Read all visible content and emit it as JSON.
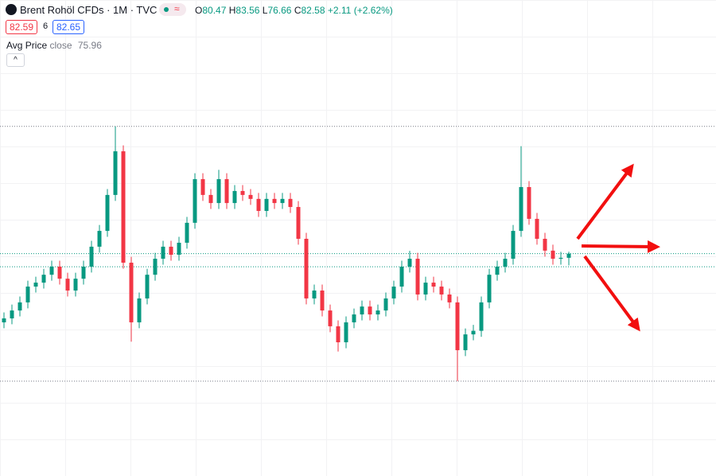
{
  "chart_data": {
    "type": "candlestick",
    "title": "Brent Rohöl CFDs · 1M · TVC",
    "ohlc_labels": [
      "O",
      "H",
      "L",
      "C"
    ],
    "change": "+2.11",
    "change_percent": "(+2.62%)",
    "bid": "82.59",
    "spread": "6",
    "ask": "82.65",
    "indicator": {
      "name": "Avg Price",
      "source": "close",
      "value": 75.96
    },
    "up_color": "#089981",
    "down_color": "#f23645",
    "ylim": [
      -30,
      211
    ],
    "open": [
      47.8,
      49.8,
      53.8,
      57.9,
      65.9,
      67.9,
      71.9,
      76.0,
      69.9,
      63.9,
      69.9,
      76.0,
      86.1,
      94.1,
      112.3,
      134.4,
      78.0,
      47.8,
      59.9,
      71.9,
      80.0,
      86.1,
      82.0,
      88.1,
      98.2,
      120.3,
      112.3,
      108.2,
      120.3,
      108.2,
      114.3,
      112.3,
      110.3,
      104.2,
      110.3,
      108.2,
      110.3,
      106.2,
      90.1,
      59.9,
      63.9,
      53.8,
      45.8,
      37.7,
      47.8,
      51.8,
      55.8,
      51.8,
      53.8,
      59.9,
      65.9,
      76.0,
      80.0,
      61.9,
      67.9,
      65.9,
      61.9,
      57.9,
      33.7,
      41.7,
      43.5,
      57.9,
      71.9,
      76.0,
      80.0,
      94.1,
      116.3,
      100.2,
      90.1,
      84.1,
      80.0,
      80.47
    ],
    "high": [
      52.8,
      56.8,
      60.9,
      68.9,
      70.9,
      74.9,
      79,
      79,
      72.9,
      72.9,
      79,
      89.1,
      97.1,
      115.3,
      147,
      137.4,
      81,
      62.9,
      74.9,
      83,
      89.1,
      89.1,
      91.1,
      101.2,
      123.3,
      123.3,
      115.3,
      125,
      123.3,
      117.3,
      117.3,
      115.3,
      113.3,
      113.3,
      113.3,
      113.3,
      113.3,
      109.2,
      93.1,
      66.9,
      66.9,
      56.8,
      48.8,
      50.8,
      54.8,
      58.8,
      58.8,
      56.8,
      62.9,
      68.9,
      79,
      84,
      83,
      70.9,
      70.9,
      68.9,
      64.9,
      60.9,
      44.7,
      46.5,
      60.9,
      74.9,
      79,
      83,
      97.1,
      137,
      119.3,
      103.2,
      93.1,
      87.1,
      83.5,
      83.56
    ],
    "low": [
      44.8,
      46.8,
      50.8,
      54.9,
      62.9,
      64.9,
      68.9,
      66.9,
      60.9,
      60.9,
      66.9,
      73,
      83.1,
      91.1,
      109.3,
      75,
      38,
      44.8,
      56.9,
      68.9,
      77,
      79,
      79,
      85.1,
      95.2,
      109.3,
      105.2,
      105.2,
      105.2,
      105.2,
      109.3,
      107.3,
      101.2,
      101.2,
      105.2,
      105.2,
      103.2,
      87.1,
      56.9,
      56.9,
      50.8,
      42.8,
      33,
      34.7,
      44.8,
      48.8,
      48.8,
      48.8,
      50.8,
      56.9,
      62.9,
      73,
      58.9,
      58.9,
      62.9,
      58.9,
      54.9,
      18,
      30.7,
      38.7,
      40.5,
      54.9,
      68.9,
      73,
      77,
      91.1,
      97.2,
      87.1,
      81.1,
      77,
      77,
      76.66
    ],
    "close": [
      49.8,
      53.8,
      57.9,
      65.9,
      67.9,
      71.9,
      76.0,
      69.9,
      63.9,
      69.9,
      76.0,
      86.1,
      94.1,
      112.3,
      134.4,
      78.0,
      47.8,
      59.9,
      71.9,
      80.0,
      86.1,
      82.0,
      88.1,
      98.2,
      120.3,
      112.3,
      108.2,
      120.3,
      108.2,
      114.3,
      112.3,
      110.3,
      104.2,
      110.3,
      108.2,
      110.3,
      106.2,
      90.1,
      59.9,
      63.9,
      53.8,
      45.8,
      37.7,
      47.8,
      51.8,
      55.8,
      51.8,
      53.8,
      59.9,
      65.9,
      76.0,
      80.0,
      61.9,
      67.9,
      65.9,
      61.9,
      57.9,
      33.7,
      41.7,
      43.5,
      57.9,
      71.9,
      76.0,
      80.0,
      94.1,
      116.3,
      100.2,
      90.1,
      84.1,
      80.0,
      80.47,
      82.58
    ]
  }
}
